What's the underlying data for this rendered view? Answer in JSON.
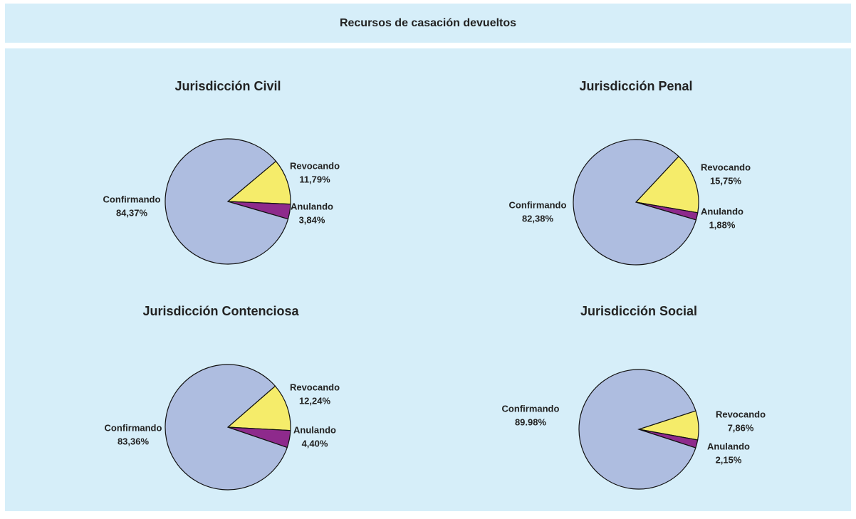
{
  "title": "Recursos de casación devueltos",
  "chart_data": [
    {
      "type": "pie",
      "title": "Jurisdicción Civil",
      "categories": [
        "Revocando",
        "Anulando",
        "Confirmando"
      ],
      "values": [
        11.79,
        3.84,
        84.37
      ],
      "value_labels": [
        "11,79%",
        "3,84%",
        "84,37%"
      ],
      "colors": [
        "#f5ec6a",
        "#8e2a8c",
        "#aebde0"
      ]
    },
    {
      "type": "pie",
      "title": "Jurisdicción Penal",
      "categories": [
        "Revocando",
        "Anulando",
        "Confirmando"
      ],
      "values": [
        15.75,
        1.88,
        82.38
      ],
      "value_labels": [
        "15,75%",
        "1,88%",
        "82,38%"
      ],
      "colors": [
        "#f5ec6a",
        "#8e2a8c",
        "#aebde0"
      ]
    },
    {
      "type": "pie",
      "title": "Jurisdicción Contenciosa",
      "categories": [
        "Revocando",
        "Anulando",
        "Confirmando"
      ],
      "values": [
        12.24,
        4.4,
        83.36
      ],
      "value_labels": [
        "12,24%",
        "4,40%",
        "83,36%"
      ],
      "colors": [
        "#f5ec6a",
        "#8e2a8c",
        "#aebde0"
      ]
    },
    {
      "type": "pie",
      "title": "Jurisdicción Social",
      "categories": [
        "Revocando",
        "Anulando",
        "Confirmando"
      ],
      "values": [
        7.86,
        2.15,
        89.98
      ],
      "value_labels": [
        "7,86%",
        "2,15%",
        "89.98%"
      ],
      "colors": [
        "#f5ec6a",
        "#8e2a8c",
        "#aebde0"
      ]
    }
  ]
}
